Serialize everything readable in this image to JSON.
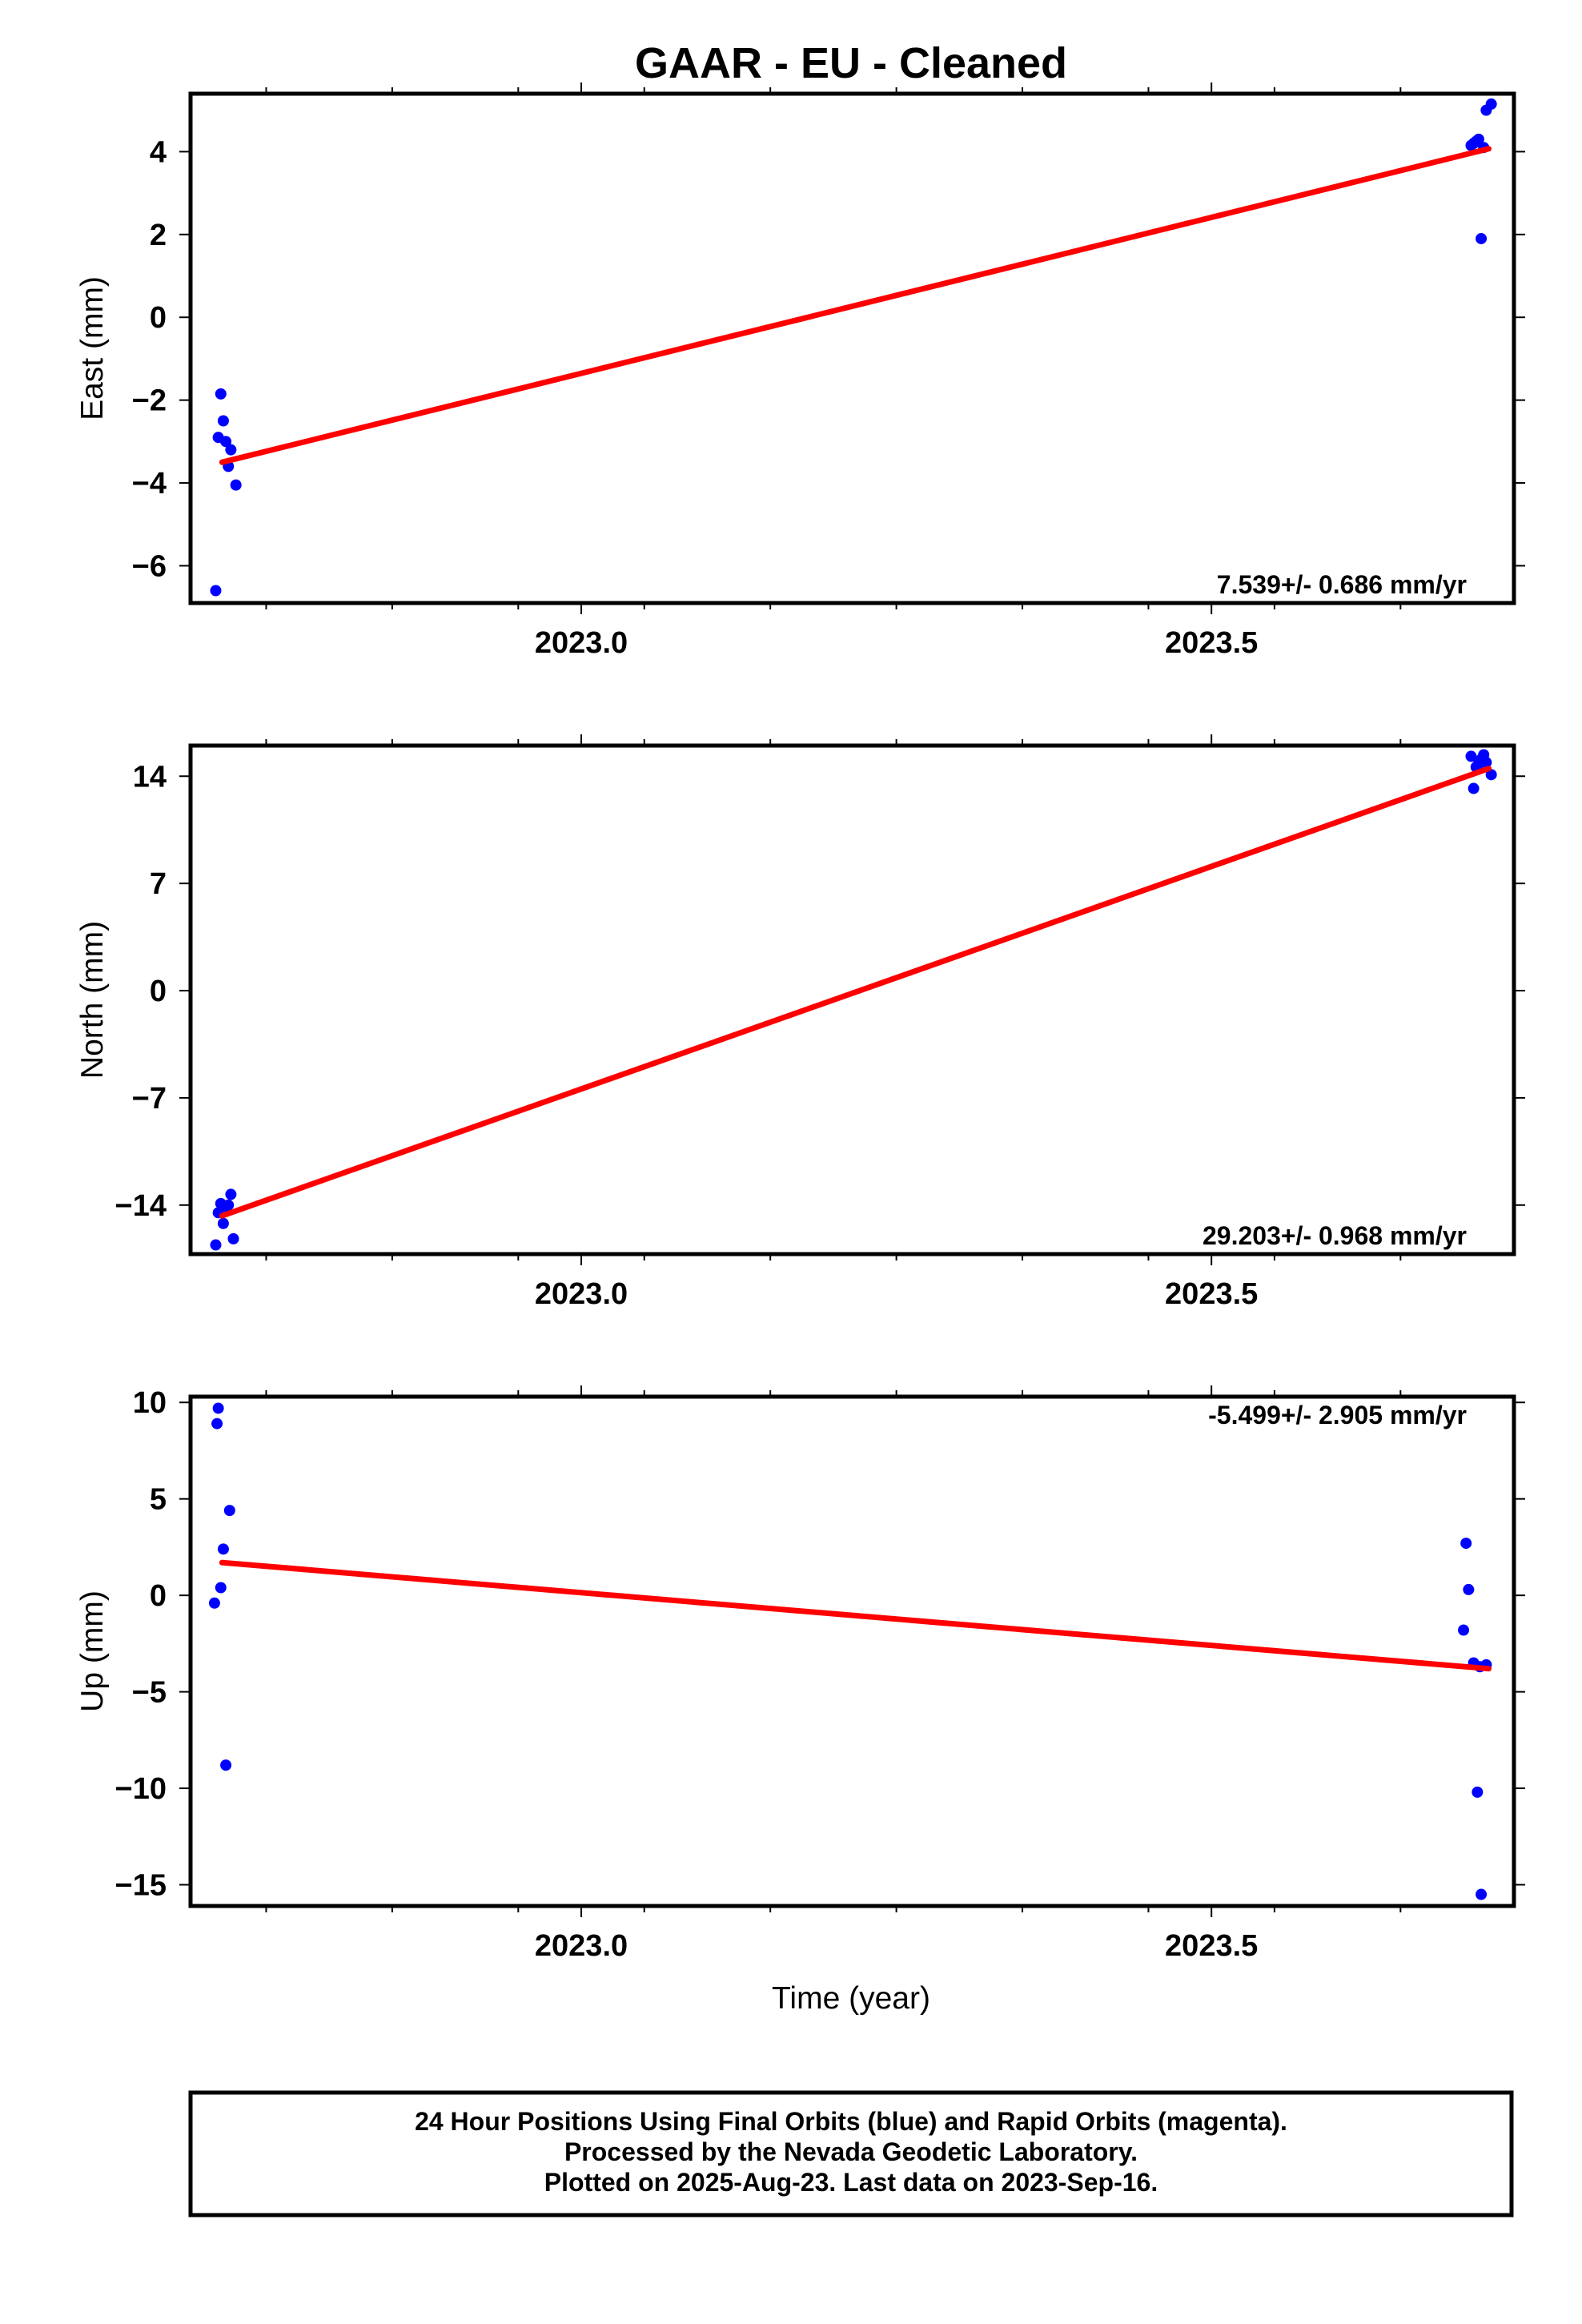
{
  "chart_data": {
    "type": "scatter",
    "title": "GAAR  - EU - Cleaned",
    "xlabel": "Time (year)",
    "xlim": [
      2022.69,
      2023.74
    ],
    "x_tick_labels": [
      "2023.0",
      "2023.5"
    ],
    "point_color": "#0000ff",
    "fit_color": "#ff0000",
    "grid": false,
    "footnote": [
      "24 Hour Positions Using Final Orbits (blue) and Rapid Orbits (magenta).",
      "Processed by the Nevada Geodetic Laboratory.",
      "Plotted on 2025-Aug-23. Last data on 2023-Sep-16."
    ],
    "panels": [
      {
        "name": "east",
        "ylabel": "East (mm)",
        "ylim": [
          -6.9,
          5.4
        ],
        "yticks": [
          4,
          2,
          0,
          -2,
          -4,
          -6
        ],
        "ytick_labels": [
          "4",
          "2",
          "0",
          "−2",
          "−4",
          "−6"
        ],
        "rate_label": "7.539+/- 0.686 mm/yr",
        "rate_pos": "bottom-right",
        "fit": {
          "x": [
            2022.715,
            2023.72
          ],
          "y": [
            -3.5,
            4.07
          ]
        },
        "x": [
          2022.71,
          2022.712,
          2022.714,
          2022.716,
          2022.72,
          2022.722,
          2022.726,
          2022.718,
          2023.706,
          2023.708,
          2023.71,
          2023.712,
          2023.714,
          2023.716,
          2023.718,
          2023.722
        ],
        "y": [
          -6.6,
          -2.9,
          -1.85,
          -2.5,
          -3.6,
          -3.2,
          -4.05,
          -3.0,
          4.15,
          4.2,
          4.25,
          4.3,
          1.9,
          4.1,
          5.0,
          5.15
        ]
      },
      {
        "name": "north",
        "ylabel": "North (mm)",
        "ylim": [
          -17.2,
          16.0
        ],
        "yticks": [
          14,
          7,
          0,
          -7,
          -14
        ],
        "ytick_labels": [
          "14",
          "7",
          "0",
          "−7",
          "−14"
        ],
        "rate_label": "29.203+/- 0.968 mm/yr",
        "rate_pos": "bottom-right",
        "fit": {
          "x": [
            2022.715,
            2023.72
          ],
          "y": [
            -14.7,
            14.5
          ]
        },
        "x": [
          2022.71,
          2022.712,
          2022.714,
          2022.716,
          2022.718,
          2022.72,
          2022.722,
          2022.724,
          2023.706,
          2023.708,
          2023.71,
          2023.712,
          2023.714,
          2023.716,
          2023.718,
          2023.722
        ],
        "y": [
          -16.6,
          -14.5,
          -13.9,
          -15.2,
          -14.1,
          -14.0,
          -13.3,
          -16.2,
          15.3,
          13.2,
          14.6,
          14.8,
          15.1,
          15.4,
          14.9,
          14.1
        ]
      },
      {
        "name": "up",
        "ylabel": "Up (mm)",
        "ylim": [
          -16.1,
          10.3
        ],
        "yticks": [
          10,
          5,
          0,
          -5,
          -10,
          -15
        ],
        "ytick_labels": [
          "10",
          "5",
          "0",
          "−5",
          "−10",
          "−15"
        ],
        "rate_label": "-5.499+/- 2.905 mm/yr",
        "rate_pos": "top-right",
        "fit": {
          "x": [
            2022.715,
            2023.72
          ],
          "y": [
            1.7,
            -3.8
          ]
        },
        "x": [
          2022.709,
          2022.711,
          2022.712,
          2022.714,
          2022.716,
          2022.718,
          2022.721,
          2023.7,
          2023.702,
          2023.704,
          2023.708,
          2023.711,
          2023.714,
          2023.718,
          2023.713
        ],
        "y": [
          -0.4,
          8.9,
          9.7,
          0.4,
          2.4,
          -8.8,
          4.4,
          -1.8,
          2.7,
          0.3,
          -3.5,
          -10.2,
          -15.5,
          -3.6,
          -3.7
        ]
      }
    ]
  }
}
